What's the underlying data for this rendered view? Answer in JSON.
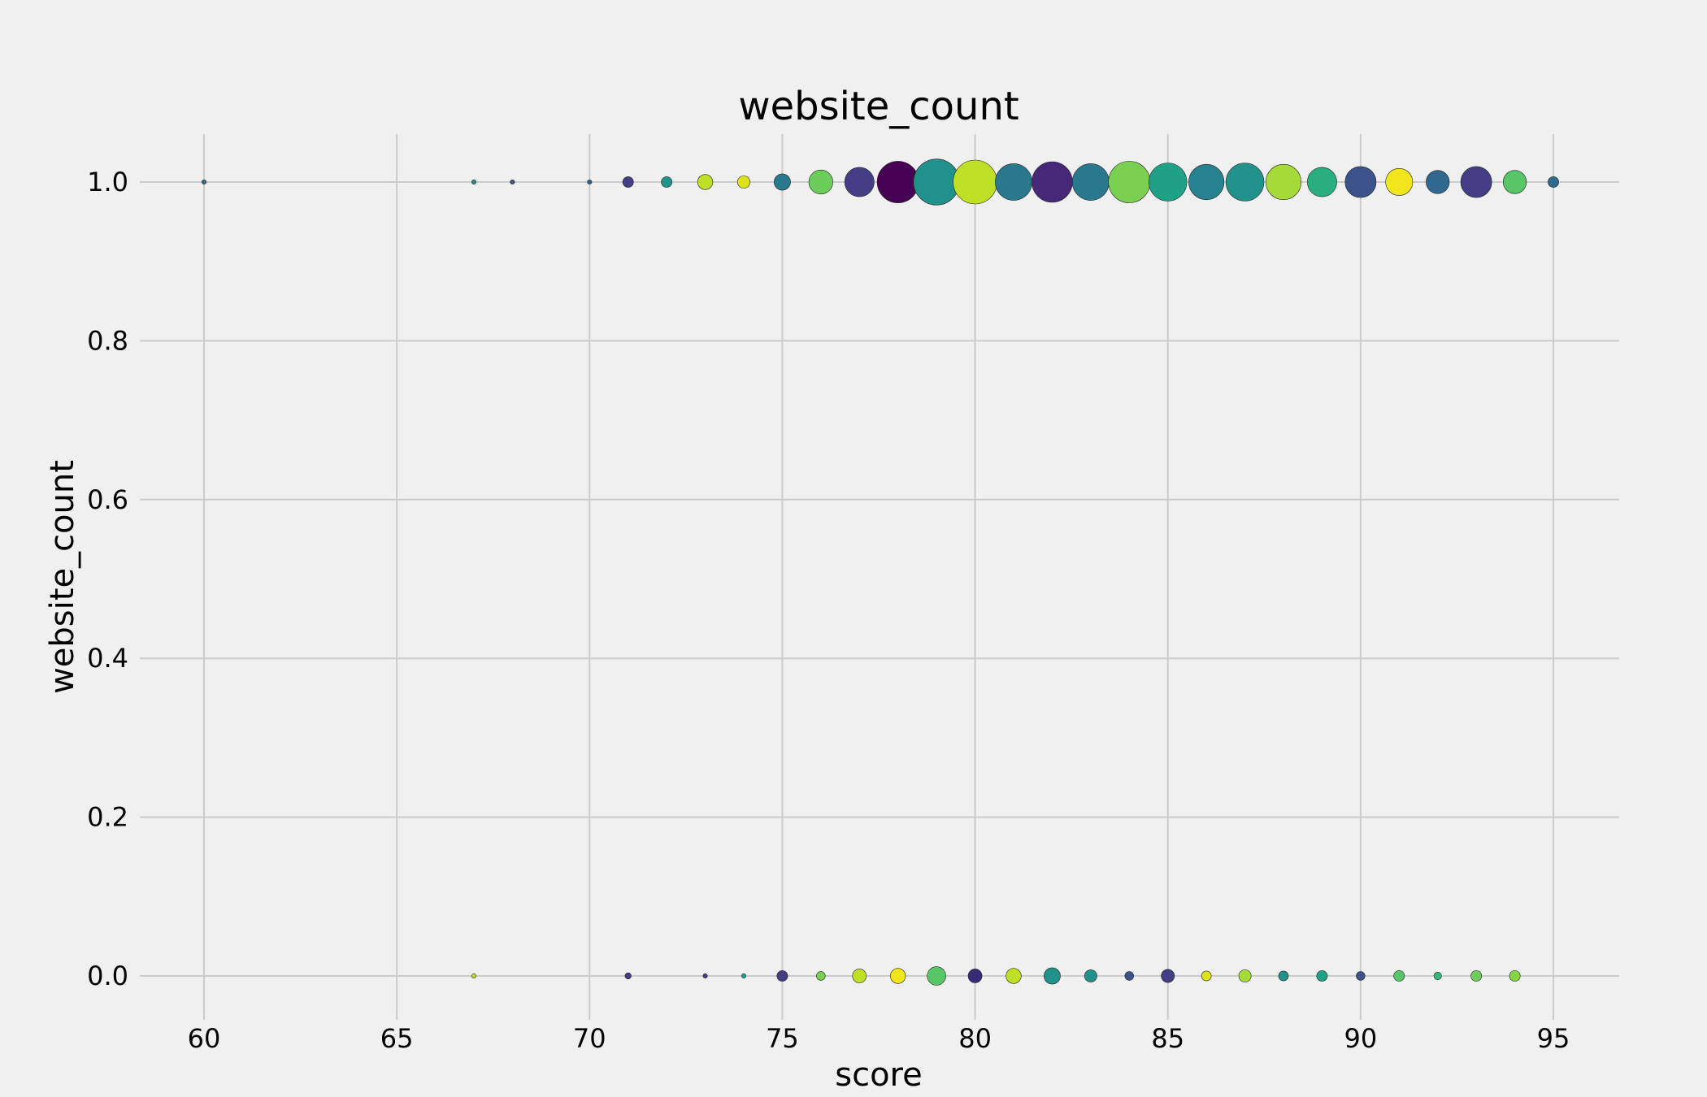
{
  "chart_data": {
    "type": "scatter",
    "title": "website_count",
    "xlabel": "score",
    "ylabel": "website_count",
    "xlim": [
      58.4,
      96.7
    ],
    "ylim": [
      -0.055,
      1.06
    ],
    "xticks": [
      60,
      65,
      70,
      75,
      80,
      85,
      90,
      95
    ],
    "yticks": [
      0.0,
      0.2,
      0.4,
      0.6,
      0.8,
      1.0
    ],
    "xtick_labels": [
      "60",
      "65",
      "70",
      "75",
      "80",
      "85",
      "90",
      "95"
    ],
    "ytick_labels": [
      "0.0",
      "0.2",
      "0.4",
      "0.6",
      "0.8",
      "1.0"
    ],
    "grid": true,
    "legend": "none",
    "colormap": "viridis",
    "size_encoding": "marker area proportional to count",
    "points": [
      {
        "x": 60,
        "y": 1,
        "size": 1,
        "color": "#31688e"
      },
      {
        "x": 67,
        "y": 1,
        "size": 1,
        "color": "#21918c"
      },
      {
        "x": 68,
        "y": 1,
        "size": 1,
        "color": "#3b528b"
      },
      {
        "x": 70,
        "y": 1,
        "size": 1,
        "color": "#31688e"
      },
      {
        "x": 71,
        "y": 1,
        "size": 6,
        "color": "#433e85"
      },
      {
        "x": 72,
        "y": 1,
        "size": 6,
        "color": "#21918c"
      },
      {
        "x": 73,
        "y": 1,
        "size": 12,
        "color": "#bddf26"
      },
      {
        "x": 74,
        "y": 1,
        "size": 8,
        "color": "#dde318"
      },
      {
        "x": 75,
        "y": 1,
        "size": 14,
        "color": "#2a788e"
      },
      {
        "x": 76,
        "y": 1,
        "size": 30,
        "color": "#6ccd5a"
      },
      {
        "x": 77,
        "y": 1,
        "size": 45,
        "color": "#433e85"
      },
      {
        "x": 78,
        "y": 1,
        "size": 90,
        "color": "#440154"
      },
      {
        "x": 79,
        "y": 1,
        "size": 110,
        "color": "#21918c"
      },
      {
        "x": 80,
        "y": 1,
        "size": 100,
        "color": "#bddf26"
      },
      {
        "x": 81,
        "y": 1,
        "size": 70,
        "color": "#2a788e"
      },
      {
        "x": 82,
        "y": 1,
        "size": 85,
        "color": "#482878"
      },
      {
        "x": 83,
        "y": 1,
        "size": 70,
        "color": "#2a788e"
      },
      {
        "x": 84,
        "y": 1,
        "size": 90,
        "color": "#7ad151"
      },
      {
        "x": 85,
        "y": 1,
        "size": 75,
        "color": "#1fa187"
      },
      {
        "x": 86,
        "y": 1,
        "size": 65,
        "color": "#26828e"
      },
      {
        "x": 87,
        "y": 1,
        "size": 75,
        "color": "#21918c"
      },
      {
        "x": 88,
        "y": 1,
        "size": 65,
        "color": "#a5db36"
      },
      {
        "x": 89,
        "y": 1,
        "size": 45,
        "color": "#29af7f"
      },
      {
        "x": 90,
        "y": 1,
        "size": 50,
        "color": "#3b528b"
      },
      {
        "x": 91,
        "y": 1,
        "size": 38,
        "color": "#f1e51d"
      },
      {
        "x": 92,
        "y": 1,
        "size": 28,
        "color": "#31688e"
      },
      {
        "x": 93,
        "y": 1,
        "size": 50,
        "color": "#433e85"
      },
      {
        "x": 94,
        "y": 1,
        "size": 28,
        "color": "#56c667"
      },
      {
        "x": 95,
        "y": 1,
        "size": 6,
        "color": "#31688e"
      },
      {
        "x": 67,
        "y": 0,
        "size": 1,
        "color": "#bddf26"
      },
      {
        "x": 71,
        "y": 0,
        "size": 2,
        "color": "#433e85"
      },
      {
        "x": 73,
        "y": 0,
        "size": 1,
        "color": "#433e85"
      },
      {
        "x": 74,
        "y": 0,
        "size": 1,
        "color": "#1fa187"
      },
      {
        "x": 75,
        "y": 0,
        "size": 6,
        "color": "#433e85"
      },
      {
        "x": 76,
        "y": 0,
        "size": 4,
        "color": "#7ad151"
      },
      {
        "x": 77,
        "y": 0,
        "size": 10,
        "color": "#bddf26"
      },
      {
        "x": 78,
        "y": 0,
        "size": 12,
        "color": "#f1e51d"
      },
      {
        "x": 79,
        "y": 0,
        "size": 18,
        "color": "#56c667"
      },
      {
        "x": 80,
        "y": 0,
        "size": 10,
        "color": "#3b2a76"
      },
      {
        "x": 81,
        "y": 0,
        "size": 12,
        "color": "#bddf26"
      },
      {
        "x": 82,
        "y": 0,
        "size": 14,
        "color": "#21918c"
      },
      {
        "x": 83,
        "y": 0,
        "size": 8,
        "color": "#21918c"
      },
      {
        "x": 84,
        "y": 0,
        "size": 4,
        "color": "#3b528b"
      },
      {
        "x": 85,
        "y": 0,
        "size": 9,
        "color": "#433e85"
      },
      {
        "x": 86,
        "y": 0,
        "size": 5,
        "color": "#dde318"
      },
      {
        "x": 87,
        "y": 0,
        "size": 8,
        "color": "#a5db36"
      },
      {
        "x": 88,
        "y": 0,
        "size": 5,
        "color": "#21918c"
      },
      {
        "x": 89,
        "y": 0,
        "size": 6,
        "color": "#1fa187"
      },
      {
        "x": 90,
        "y": 0,
        "size": 4,
        "color": "#3b528b"
      },
      {
        "x": 91,
        "y": 0,
        "size": 6,
        "color": "#56c667"
      },
      {
        "x": 92,
        "y": 0,
        "size": 3,
        "color": "#35b779"
      },
      {
        "x": 93,
        "y": 0,
        "size": 6,
        "color": "#6ccd5a"
      },
      {
        "x": 94,
        "y": 0,
        "size": 6,
        "color": "#86d549"
      }
    ]
  }
}
